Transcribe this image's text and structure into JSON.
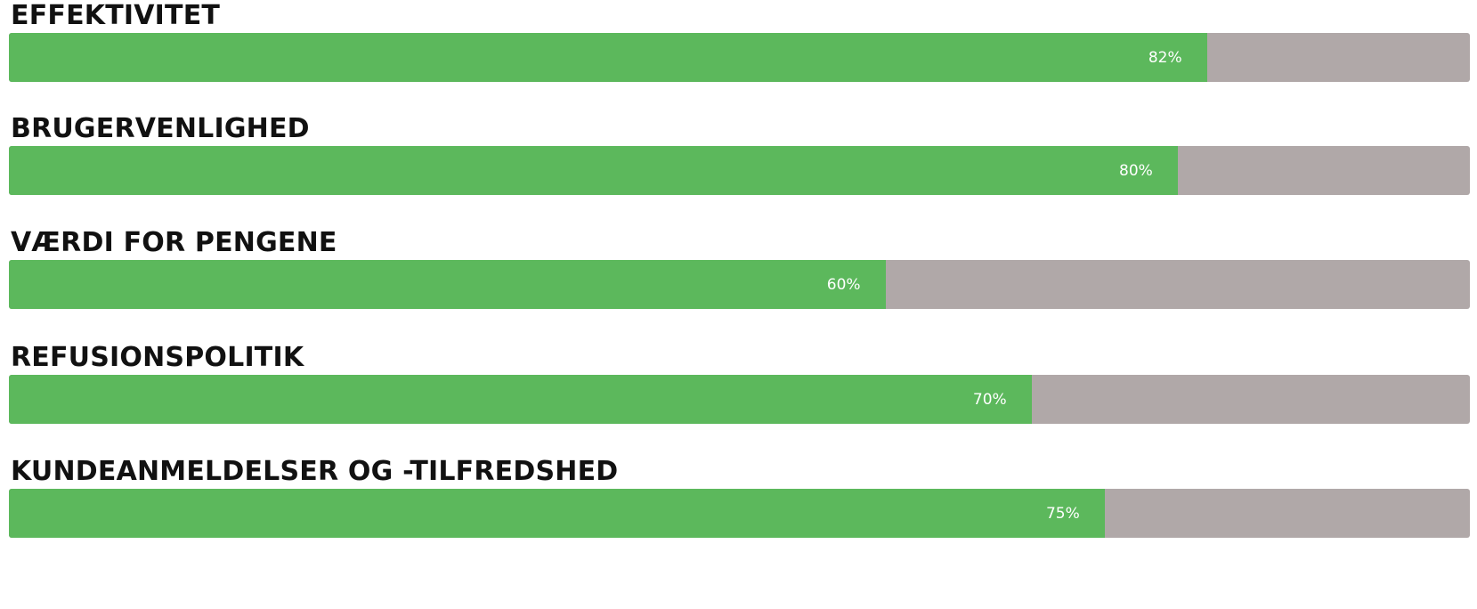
{
  "colors": {
    "fill": "#5cb85c",
    "track": "#b0a8a8",
    "label": "#111111",
    "value_text": "#ffffff"
  },
  "ratings": [
    {
      "label": "EFFEKTIVITET",
      "value_label": "82%",
      "value": 82
    },
    {
      "label": "BRUGERVENLIGHED",
      "value_label": "80%",
      "value": 80
    },
    {
      "label": "VÆRDI FOR PENGENE",
      "value_label": "60%",
      "value": 60
    },
    {
      "label": "REFUSIONSPOLITIK",
      "value_label": "70%",
      "value": 70
    },
    {
      "label": "KUNDEANMELDELSER OG -TILFREDSHED",
      "value_label": "75%",
      "value": 75
    }
  ],
  "chart_data": {
    "type": "bar",
    "orientation": "horizontal",
    "categories": [
      "EFFEKTIVITET",
      "BRUGERVENLIGHED",
      "VÆRDI FOR PENGENE",
      "REFUSIONSPOLITIK",
      "KUNDEANMELDELSER OG -TILFREDSHED"
    ],
    "values": [
      82,
      80,
      60,
      70,
      75
    ],
    "xlim": [
      0,
      100
    ],
    "grid": false,
    "legend": "none"
  }
}
